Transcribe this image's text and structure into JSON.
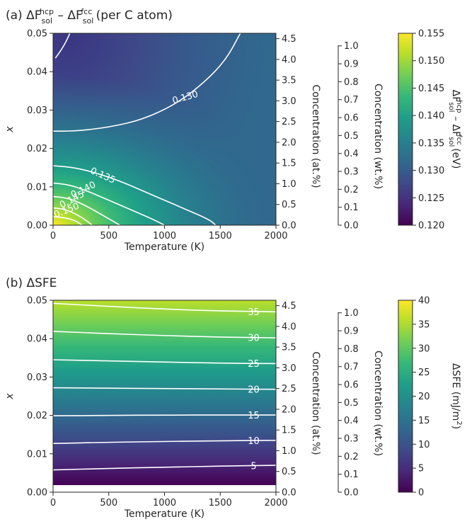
{
  "colors": {
    "viridis": [
      "#440154",
      "#482878",
      "#3e4a89",
      "#31688e",
      "#26828e",
      "#1f9e89",
      "#35b779",
      "#6ece58",
      "#b5de2b",
      "#fde725"
    ],
    "contour": "#ffffff",
    "axis": "#262626"
  },
  "chart_data": [
    {
      "type": "heatmap",
      "panel": "(a)",
      "title_prefix": "(a) ΔF",
      "title_sup1": "hcp",
      "title_sub1": "sol",
      "title_mid": " – ΔF",
      "title_sup2": "fcc",
      "title_sub2": "sol",
      "title_suffix": " (per C atom)",
      "xlabel": "Temperature (K)",
      "ylabel": "x",
      "xlim": [
        0,
        2000
      ],
      "ylim": [
        0,
        0.05
      ],
      "xticks": [
        "0",
        "500",
        "1000",
        "1500",
        "2000"
      ],
      "yticks": [
        "0.00",
        "0.01",
        "0.02",
        "0.03",
        "0.04",
        "0.05"
      ],
      "secondary_axes": [
        {
          "label": "Concentration (at.%)",
          "ticks": [
            "0.0",
            "0.5",
            "1.0",
            "1.5",
            "2.0",
            "2.5",
            "3.0",
            "3.5",
            "4.0",
            "4.5"
          ]
        },
        {
          "label": "Concentration (wt.%)",
          "ticks": [
            "0.0",
            "0.1",
            "0.2",
            "0.3",
            "0.4",
            "0.5",
            "0.6",
            "0.7",
            "0.8",
            "0.9",
            "1.0"
          ]
        }
      ],
      "colorbar": {
        "label": "ΔF_sol^hcp – ΔF_sol^fcc (eV)",
        "label_text": "ΔF",
        "label_sup1": "hcp",
        "label_sub1": "sol",
        "label_mid": " – ΔF",
        "label_sup2": "fcc",
        "label_sub2": "sol",
        "label_suffix": " (eV)",
        "range": [
          0.12,
          0.155
        ],
        "ticks": [
          "0.120",
          "0.125",
          "0.130",
          "0.135",
          "0.140",
          "0.145",
          "0.150",
          "0.155"
        ]
      },
      "contour_labels": [
        "0.130",
        "0.135",
        "0.140",
        "0.145",
        "0.150"
      ],
      "contours": [
        {
          "level": 0.13,
          "points": [
            [
              0,
              0.0245
            ],
            [
              200,
              0.0245
            ],
            [
              500,
              0.0255
            ],
            [
              800,
              0.0275
            ],
            [
              1100,
              0.0315
            ],
            [
              1350,
              0.037
            ],
            [
              1550,
              0.043
            ],
            [
              1680,
              0.05
            ]
          ]
        },
        {
          "level": 0.135,
          "points": [
            [
              0,
              0.0155
            ],
            [
              200,
              0.015
            ],
            [
              400,
              0.0135
            ],
            [
              600,
              0.0115
            ],
            [
              800,
              0.009
            ],
            [
              1000,
              0.0065
            ],
            [
              1200,
              0.004
            ],
            [
              1400,
              0.0015
            ],
            [
              1460,
              0
            ]
          ]
        },
        {
          "level": 0.14,
          "points": [
            [
              0,
              0.011
            ],
            [
              150,
              0.0105
            ],
            [
              300,
              0.009
            ],
            [
              500,
              0.0065
            ],
            [
              700,
              0.004
            ],
            [
              900,
              0.0015
            ],
            [
              1000,
              0.0
            ]
          ]
        },
        {
          "level": 0.145,
          "points": [
            [
              0,
              0.0075
            ],
            [
              150,
              0.007
            ],
            [
              300,
              0.005
            ],
            [
              450,
              0.0025
            ],
            [
              600,
              0.0
            ]
          ]
        },
        {
          "level": 0.15,
          "points": [
            [
              0,
              0.0045
            ],
            [
              100,
              0.0042
            ],
            [
              200,
              0.003
            ],
            [
              300,
              0.0012
            ],
            [
              350,
              0.0
            ]
          ]
        },
        {
          "level": 0.155,
          "points": [
            [
              0,
              0.0022
            ],
            [
              100,
              0.002
            ],
            [
              200,
              0.0012
            ],
            [
              260,
              0.0
            ]
          ]
        },
        {
          "level": 0.125,
          "points": [
            [
              20,
              0.0435
            ],
            [
              70,
              0.0455
            ],
            [
              120,
              0.048
            ],
            [
              150,
              0.05
            ]
          ]
        }
      ]
    },
    {
      "type": "heatmap",
      "panel": "(b)",
      "title": "(b) ΔSFE",
      "xlabel": "Temperature (K)",
      "ylabel": "x",
      "xlim": [
        0,
        2000
      ],
      "ylim": [
        0,
        0.05
      ],
      "xticks": [
        "0",
        "500",
        "1000",
        "1500",
        "2000"
      ],
      "yticks": [
        "0.00",
        "0.01",
        "0.02",
        "0.03",
        "0.04",
        "0.05"
      ],
      "secondary_axes": [
        {
          "label": "Concentration (at.%)",
          "ticks": [
            "0.0",
            "0.5",
            "1.0",
            "1.5",
            "2.0",
            "2.5",
            "3.0",
            "3.5",
            "4.0",
            "4.5"
          ]
        },
        {
          "label": "Concentration (wt.%)",
          "ticks": [
            "0.0",
            "0.1",
            "0.2",
            "0.3",
            "0.4",
            "0.5",
            "0.6",
            "0.7",
            "0.8",
            "0.9",
            "1.0"
          ]
        }
      ],
      "colorbar": {
        "label": "ΔSFE (mJ/m^2)",
        "label_main": "ΔSFE (mJ/m",
        "label_sup": "2",
        "label_end": ")",
        "range": [
          0,
          40
        ],
        "ticks": [
          "0",
          "5",
          "10",
          "15",
          "20",
          "25",
          "30",
          "35",
          "40"
        ]
      },
      "contour_labels": [
        "5",
        "10",
        "15",
        "20",
        "25",
        "30",
        "35"
      ],
      "contours": [
        {
          "level": 5,
          "points": [
            [
              0,
              0.0058
            ],
            [
              500,
              0.0062
            ],
            [
              1000,
              0.0065
            ],
            [
              1500,
              0.0068
            ],
            [
              2000,
              0.007
            ]
          ]
        },
        {
          "level": 10,
          "points": [
            [
              0,
              0.0127
            ],
            [
              500,
              0.013
            ],
            [
              1000,
              0.0132
            ],
            [
              1500,
              0.0134
            ],
            [
              2000,
              0.0135
            ]
          ]
        },
        {
          "level": 15,
          "points": [
            [
              0,
              0.0199
            ],
            [
              500,
              0.02
            ],
            [
              1000,
              0.0201
            ],
            [
              1500,
              0.0201
            ],
            [
              2000,
              0.0201
            ]
          ]
        },
        {
          "level": 20,
          "points": [
            [
              0,
              0.0272
            ],
            [
              500,
              0.0271
            ],
            [
              1000,
              0.027
            ],
            [
              1500,
              0.0269
            ],
            [
              2000,
              0.0268
            ]
          ]
        },
        {
          "level": 25,
          "points": [
            [
              0,
              0.0345
            ],
            [
              500,
              0.0342
            ],
            [
              1000,
              0.0339
            ],
            [
              1500,
              0.0336
            ],
            [
              2000,
              0.0335
            ]
          ]
        },
        {
          "level": 30,
          "points": [
            [
              0,
              0.0419
            ],
            [
              500,
              0.0413
            ],
            [
              1000,
              0.0408
            ],
            [
              1500,
              0.0404
            ],
            [
              2000,
              0.0402
            ]
          ]
        },
        {
          "level": 35,
          "points": [
            [
              0,
              0.0492
            ],
            [
              500,
              0.0484
            ],
            [
              1000,
              0.0477
            ],
            [
              1500,
              0.0472
            ],
            [
              2000,
              0.047
            ]
          ]
        }
      ]
    }
  ]
}
